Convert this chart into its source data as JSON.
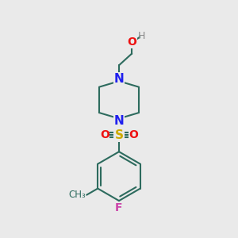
{
  "bg_color": "#eaeaea",
  "bond_color": "#2d6b5e",
  "N_color": "#2020ee",
  "O_color": "#ee1111",
  "S_color": "#ccaa00",
  "F_color": "#cc44aa",
  "H_color": "#888888",
  "line_width": 1.5,
  "figsize": [
    3.0,
    3.0
  ],
  "dpi": 100,
  "xlim": [
    0,
    10
  ],
  "ylim": [
    0,
    10
  ]
}
